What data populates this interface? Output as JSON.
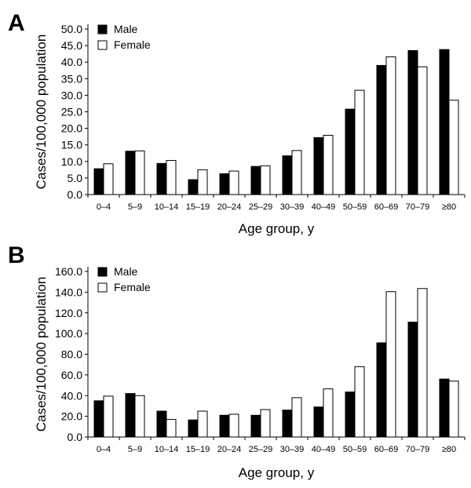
{
  "chart_data": [
    {
      "type": "bar",
      "panel_label": "A",
      "categories": [
        "0–4",
        "5–9",
        "10–14",
        "15–19",
        "20–24",
        "25–29",
        "30–39",
        "40–49",
        "50–59",
        "60–69",
        "70–79",
        "≥80"
      ],
      "series": [
        {
          "name": "Male",
          "color": "#000000",
          "values": [
            7.8,
            13.1,
            9.4,
            4.5,
            6.3,
            8.5,
            11.7,
            17.2,
            25.8,
            39.0,
            43.5,
            43.8
          ]
        },
        {
          "name": "Female",
          "color": "#ffffff",
          "values": [
            9.3,
            13.2,
            10.3,
            7.5,
            7.1,
            8.7,
            13.3,
            17.9,
            31.5,
            41.6,
            38.6,
            28.5
          ]
        }
      ],
      "ylabel": "Cases/100,000 population",
      "xlabel": "Age group, y",
      "ylim": [
        0,
        50
      ],
      "yticks": [
        "0.0",
        "5.0",
        "10.0",
        "15.0",
        "20.0",
        "25.0",
        "30.0",
        "35.0",
        "40.0",
        "45.0",
        "50.0"
      ],
      "grid": false,
      "legend": "top-left"
    },
    {
      "type": "bar",
      "panel_label": "B",
      "categories": [
        "0–4",
        "5–9",
        "10–14",
        "15–19",
        "20–24",
        "25–29",
        "30–39",
        "40–49",
        "50–59",
        "60–69",
        "70–79",
        "≥80"
      ],
      "series": [
        {
          "name": "Male",
          "color": "#000000",
          "values": [
            35.0,
            42.0,
            25.0,
            16.5,
            21.0,
            21.0,
            26.0,
            29.0,
            43.5,
            91.0,
            111.0,
            56.0
          ]
        },
        {
          "name": "Female",
          "color": "#ffffff",
          "values": [
            39.5,
            40.0,
            17.0,
            25.0,
            22.0,
            26.5,
            38.0,
            46.5,
            68.0,
            140.5,
            143.5,
            54.0
          ]
        }
      ],
      "ylabel": "Cases/100,000 population",
      "xlabel": "Age group, y",
      "ylim": [
        0,
        160
      ],
      "yticks": [
        "0.0",
        "20.0",
        "40.0",
        "60.0",
        "80.0",
        "100.0",
        "120.0",
        "140.0",
        "160.0"
      ],
      "grid": false,
      "legend": "top-left"
    }
  ]
}
